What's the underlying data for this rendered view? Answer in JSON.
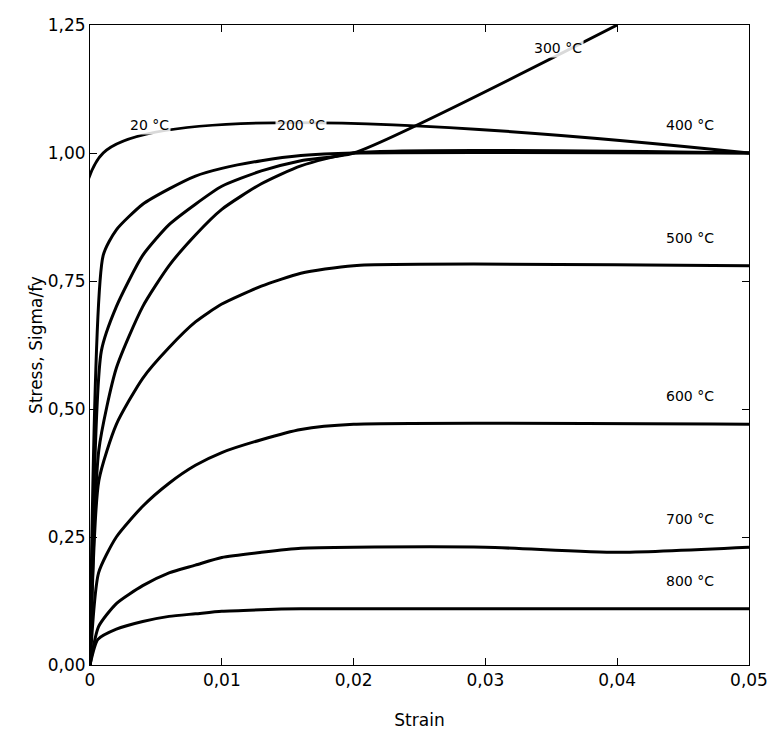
{
  "chart_data": {
    "type": "line",
    "x_label": "Strain",
    "y_label": "Stress, Sigma/fy",
    "xlim": [
      0,
      0.05
    ],
    "ylim": [
      0,
      1.25
    ],
    "xticks": [
      0,
      {
        "value": 0.01,
        "label": "0,01"
      },
      {
        "value": 0.02,
        "label": "0,02"
      },
      {
        "value": 0.03,
        "label": "0,03"
      },
      {
        "value": 0.04,
        "label": "0,04"
      },
      {
        "value": 0.05,
        "label": "0,05"
      }
    ],
    "yticks": [
      {
        "value": 0,
        "label": "0,00"
      },
      {
        "value": 0.25,
        "label": "0,25"
      },
      {
        "value": 0.5,
        "label": "0,50"
      },
      {
        "value": 0.75,
        "label": "0,75"
      },
      {
        "value": 1.0,
        "label": "1,00"
      },
      {
        "value": 1.25,
        "label": "1,25"
      }
    ],
    "grid": false,
    "series": [
      {
        "name": "20 °C",
        "color": "#000000",
        "x": [
          0,
          0.001,
          0.05
        ],
        "values": [
          0,
          1.0,
          1.0
        ]
      },
      {
        "name": "200 °C",
        "color": "#000000",
        "x": [
          0,
          0.001,
          0.002,
          0.004,
          0.006,
          0.008,
          0.01,
          0.013,
          0.016,
          0.02,
          0.05
        ],
        "values": [
          0,
          0.8,
          0.85,
          0.9,
          0.93,
          0.955,
          0.97,
          0.985,
          0.995,
          1.0,
          1.0
        ]
      },
      {
        "name": "300 °C",
        "color": "#000000",
        "x": [
          0,
          0.00086,
          0.002,
          0.004,
          0.006,
          0.008,
          0.01,
          0.013,
          0.016,
          0.02,
          0.04
        ],
        "values": [
          0,
          0.613,
          0.7,
          0.8,
          0.86,
          0.9,
          0.935,
          0.965,
          0.985,
          1.0,
          1.25
        ]
      },
      {
        "name": "400 °C",
        "color": "#000000",
        "x": [
          0,
          0.00067,
          0.002,
          0.004,
          0.006,
          0.008,
          0.01,
          0.013,
          0.016,
          0.02,
          0.05
        ],
        "values": [
          0,
          0.42,
          0.58,
          0.7,
          0.78,
          0.84,
          0.89,
          0.94,
          0.975,
          1.0,
          1.0
        ]
      },
      {
        "name": "500 °C",
        "color": "#000000",
        "x": [
          0,
          0.00067,
          0.002,
          0.004,
          0.006,
          0.008,
          0.01,
          0.013,
          0.016,
          0.02,
          0.05
        ],
        "values": [
          0,
          0.36,
          0.47,
          0.56,
          0.62,
          0.67,
          0.705,
          0.74,
          0.765,
          0.78,
          0.78
        ]
      },
      {
        "name": "600 °C",
        "color": "#000000",
        "x": [
          0,
          0.00065,
          0.002,
          0.004,
          0.006,
          0.008,
          0.01,
          0.013,
          0.016,
          0.02,
          0.05
        ],
        "values": [
          0,
          0.18,
          0.25,
          0.31,
          0.355,
          0.39,
          0.415,
          0.44,
          0.46,
          0.47,
          0.47
        ]
      },
      {
        "name": "700 °C",
        "color": "#000000",
        "x": [
          0,
          0.00065,
          0.002,
          0.004,
          0.006,
          0.008,
          0.01,
          0.013,
          0.016,
          0.02,
          0.03,
          0.04,
          0.05
        ],
        "values": [
          0,
          0.075,
          0.12,
          0.155,
          0.18,
          0.195,
          0.21,
          0.22,
          0.228,
          0.23,
          0.23,
          0.22,
          0.23
        ]
      },
      {
        "name": "800 °C",
        "color": "#000000",
        "x": [
          0,
          0.0006,
          0.002,
          0.004,
          0.006,
          0.008,
          0.01,
          0.013,
          0.016,
          0.02,
          0.05
        ],
        "values": [
          0,
          0.05,
          0.07,
          0.085,
          0.095,
          0.1,
          0.105,
          0.108,
          0.11,
          0.11,
          0.11
        ]
      }
    ],
    "annotations": [
      {
        "text": "20 °C",
        "x": 0.0045,
        "y": 1.035
      },
      {
        "text": "200 °C",
        "x": 0.016,
        "y": 1.035
      },
      {
        "text": "300 °C",
        "x": 0.0355,
        "y": 1.185
      },
      {
        "text": "400 °C",
        "x": 0.0455,
        "y": 1.035
      },
      {
        "text": "500 °C",
        "x": 0.0455,
        "y": 0.815
      },
      {
        "text": "600 °C",
        "x": 0.0455,
        "y": 0.505
      },
      {
        "text": "700 °C",
        "x": 0.0455,
        "y": 0.265
      },
      {
        "text": "800 °C",
        "x": 0.0455,
        "y": 0.145
      }
    ]
  }
}
